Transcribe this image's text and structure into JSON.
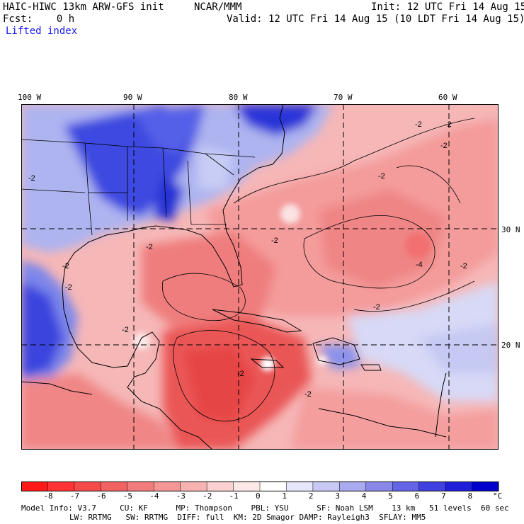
{
  "header": {
    "model_title": "HAIC-HIWC 13km ARW-GFS init",
    "org": "NCAR/MMM",
    "init": "Init: 12 UTC Fri 14 Aug 15",
    "fcst": "Fcst:    0 h",
    "valid": "Valid: 12 UTC Fri 14 Aug 15 (10 LDT Fri 14 Aug 15)",
    "field": "Lifted index"
  },
  "map": {
    "lon_labels": [
      "100 W",
      "90 W",
      "80 W",
      "70 W",
      "60 W"
    ],
    "lat_labels": [
      "30 N",
      "20 N"
    ],
    "contour_labels": [
      "-2",
      "-2",
      "-2",
      "-2",
      "-2",
      "-2",
      "-4",
      "-2",
      "-2",
      "-2",
      "-2",
      "-2",
      "-2",
      "-2",
      "-2"
    ]
  },
  "colorbar": {
    "labels": [
      "-8",
      "-7",
      "-6",
      "-5",
      "-4",
      "-3",
      "-2",
      "-1",
      "0",
      "1",
      "2",
      "3",
      "4",
      "5",
      "6",
      "7",
      "8"
    ],
    "unit": "°C",
    "colors": [
      "#ff1a1a",
      "#ff3333",
      "#f54a4a",
      "#f26262",
      "#f27c7c",
      "#f59696",
      "#f7b2b2",
      "#fad0d0",
      "#fde8e8",
      "#ffffff",
      "#e6e6fb",
      "#c8c8f5",
      "#aaaaf0",
      "#8888ea",
      "#6464e6",
      "#4040e0",
      "#2020db",
      "#0000cc"
    ]
  },
  "footer": {
    "line1": "Model Info: V3.7     CU: KF      MP: Thompson    PBL: YSU      SF: Noah LSM    13 km   51 levels  60 sec",
    "line2": "LW: RRTMG   SW: RRTMG  DIFF: full  KM: 2D Smagor DAMP: Rayleigh3  SFLAY: MM5"
  }
}
